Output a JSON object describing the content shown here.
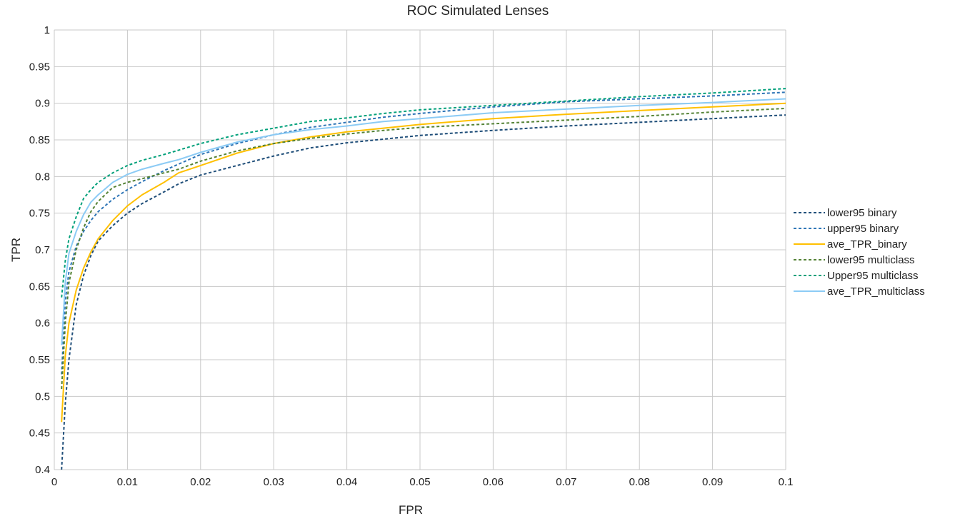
{
  "chart_data": {
    "type": "line",
    "title": "ROC Simulated  Lenses",
    "xlabel": "FPR",
    "ylabel": "TPR",
    "xlim": [
      0,
      0.1
    ],
    "ylim": [
      0.4,
      1
    ],
    "x_ticks": [
      "0",
      "0.01",
      "0.02",
      "0.03",
      "0.04",
      "0.05",
      "0.06",
      "0.07",
      "0.08",
      "0.09",
      "0.1"
    ],
    "y_ticks": [
      "0.4",
      "0.45",
      "0.5",
      "0.55",
      "0.6",
      "0.65",
      "0.7",
      "0.75",
      "0.8",
      "0.85",
      "0.9",
      "0.95",
      "1"
    ],
    "grid": true,
    "legend_position": "right",
    "x": [
      0.001,
      0.0015,
      0.002,
      0.003,
      0.004,
      0.005,
      0.006,
      0.008,
      0.01,
      0.012,
      0.015,
      0.017,
      0.02,
      0.025,
      0.03,
      0.035,
      0.04,
      0.045,
      0.05,
      0.06,
      0.07,
      0.08,
      0.09,
      0.1
    ],
    "series": [
      {
        "name": "lower95 binary",
        "color": "#1f4e79",
        "dash": "dotted",
        "values": [
          0.39,
          0.49,
          0.55,
          0.625,
          0.665,
          0.692,
          0.712,
          0.733,
          0.75,
          0.763,
          0.779,
          0.79,
          0.802,
          0.815,
          0.828,
          0.839,
          0.846,
          0.851,
          0.856,
          0.863,
          0.869,
          0.874,
          0.879,
          0.884
        ]
      },
      {
        "name": "upper95 binary",
        "color": "#2e75b6",
        "dash": "dotted",
        "values": [
          0.53,
          0.63,
          0.67,
          0.705,
          0.725,
          0.74,
          0.752,
          0.769,
          0.782,
          0.793,
          0.808,
          0.817,
          0.83,
          0.845,
          0.857,
          0.867,
          0.874,
          0.881,
          0.886,
          0.895,
          0.902,
          0.906,
          0.91,
          0.915
        ]
      },
      {
        "name": "ave_TPR_binary",
        "color": "#ffc000",
        "dash": "solid",
        "values": [
          0.465,
          0.555,
          0.6,
          0.645,
          0.675,
          0.697,
          0.715,
          0.74,
          0.76,
          0.775,
          0.792,
          0.805,
          0.815,
          0.832,
          0.845,
          0.854,
          0.861,
          0.866,
          0.871,
          0.879,
          0.885,
          0.89,
          0.895,
          0.9
        ]
      },
      {
        "name": "lower95 multiclass",
        "color": "#548235",
        "dash": "dotted",
        "values": [
          0.51,
          0.6,
          0.655,
          0.7,
          0.73,
          0.752,
          0.766,
          0.785,
          0.792,
          0.797,
          0.805,
          0.81,
          0.821,
          0.835,
          0.845,
          0.852,
          0.858,
          0.863,
          0.867,
          0.872,
          0.877,
          0.882,
          0.888,
          0.893
        ]
      },
      {
        "name": "Upper95 multiclass",
        "color": "#00a07a",
        "dash": "dotted",
        "values": [
          0.635,
          0.685,
          0.715,
          0.745,
          0.77,
          0.782,
          0.792,
          0.805,
          0.815,
          0.822,
          0.83,
          0.836,
          0.845,
          0.857,
          0.866,
          0.875,
          0.88,
          0.886,
          0.891,
          0.897,
          0.903,
          0.909,
          0.914,
          0.92
        ]
      },
      {
        "name": "ave_TPR_multiclass",
        "color": "#8ccbf5",
        "dash": "solid",
        "values": [
          0.57,
          0.655,
          0.695,
          0.725,
          0.748,
          0.765,
          0.775,
          0.792,
          0.803,
          0.81,
          0.818,
          0.823,
          0.833,
          0.847,
          0.857,
          0.864,
          0.869,
          0.875,
          0.879,
          0.887,
          0.892,
          0.897,
          0.901,
          0.906
        ]
      }
    ]
  }
}
